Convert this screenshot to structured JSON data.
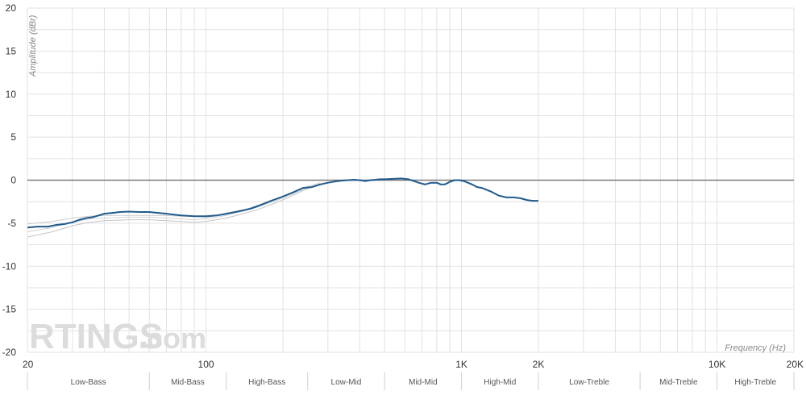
{
  "chart_data": {
    "type": "line",
    "xlabel": "Frequency (Hz)",
    "ylabel": "Amplitude (dBr)",
    "xscale": "log",
    "xlim": [
      20,
      20000
    ],
    "ylim": [
      -20,
      20
    ],
    "grid": true,
    "x_ticks": [
      {
        "value": 20,
        "label": "20"
      },
      {
        "value": 100,
        "label": "100"
      },
      {
        "value": 1000,
        "label": "1K"
      },
      {
        "value": 2000,
        "label": "2K"
      },
      {
        "value": 10000,
        "label": "10K"
      },
      {
        "value": 20000,
        "label": "20K"
      }
    ],
    "y_ticks": [
      {
        "value": 20,
        "label": "20"
      },
      {
        "value": 15,
        "label": "15"
      },
      {
        "value": 10,
        "label": "10"
      },
      {
        "value": 5,
        "label": "5"
      },
      {
        "value": 0,
        "label": "0"
      },
      {
        "value": -5,
        "label": "-5"
      },
      {
        "value": -10,
        "label": "-10"
      },
      {
        "value": -15,
        "label": "-15"
      },
      {
        "value": -20,
        "label": "-20"
      }
    ],
    "bands": [
      {
        "label": "Low-Bass",
        "from": 20,
        "to": 60
      },
      {
        "label": "Mid-Bass",
        "from": 60,
        "to": 120
      },
      {
        "label": "High-Bass",
        "from": 120,
        "to": 250
      },
      {
        "label": "Low-Mid",
        "from": 250,
        "to": 500
      },
      {
        "label": "Mid-Mid",
        "from": 500,
        "to": 1000
      },
      {
        "label": "High-Mid",
        "from": 1000,
        "to": 2000
      },
      {
        "label": "Low-Treble",
        "from": 2000,
        "to": 5000
      },
      {
        "label": "Mid-Treble",
        "from": 5000,
        "to": 10000
      },
      {
        "label": "High-Treble",
        "from": 10000,
        "to": 20000
      }
    ],
    "series": [
      {
        "color": "#1f5a8c",
        "x": [
          20,
          22,
          24,
          26,
          28,
          30,
          32,
          34,
          36,
          38,
          40,
          43,
          46,
          50,
          55,
          60,
          65,
          70,
          75,
          80,
          85,
          90,
          95,
          100,
          105,
          110,
          115,
          120,
          130,
          140,
          150,
          160,
          180,
          200,
          220,
          240,
          260,
          280,
          300,
          320,
          340,
          360,
          380,
          400,
          420,
          440,
          460,
          480,
          500,
          540,
          580,
          620,
          650,
          680,
          720,
          760,
          800,
          830,
          860,
          900,
          940,
          980,
          1020,
          1060,
          1100,
          1150,
          1200,
          1300,
          1400,
          1500,
          1600,
          1700,
          1800,
          1900,
          2000
        ],
        "y": [
          -5.5,
          -5.4,
          -5.4,
          -5.2,
          -5.1,
          -4.9,
          -4.6,
          -4.4,
          -4.3,
          -4.1,
          -3.9,
          -3.8,
          -3.7,
          -3.65,
          -3.7,
          -3.7,
          -3.8,
          -3.9,
          -4.0,
          -4.1,
          -4.15,
          -4.2,
          -4.2,
          -4.2,
          -4.15,
          -4.1,
          -4.0,
          -3.9,
          -3.7,
          -3.5,
          -3.3,
          -3.0,
          -2.4,
          -1.9,
          -1.4,
          -0.9,
          -0.8,
          -0.5,
          -0.3,
          -0.15,
          -0.05,
          0.0,
          0.05,
          0.0,
          -0.1,
          0.0,
          0.05,
          0.1,
          0.1,
          0.15,
          0.2,
          0.1,
          -0.1,
          -0.3,
          -0.5,
          -0.3,
          -0.3,
          -0.5,
          -0.5,
          -0.2,
          0.0,
          0.0,
          -0.1,
          -0.3,
          -0.5,
          -0.8,
          -0.9,
          -1.3,
          -1.8,
          -2.0,
          -2.0,
          -2.1,
          -2.3,
          -2.4,
          -2.4
        ]
      },
      {
        "color": "#c4c4c4",
        "x": [
          20,
          25,
          30,
          35,
          40,
          50,
          60,
          70,
          80,
          90,
          100,
          120,
          140,
          160,
          200,
          240,
          280
        ],
        "y": [
          -6.6,
          -6.0,
          -5.3,
          -4.9,
          -4.7,
          -4.6,
          -4.6,
          -4.7,
          -4.8,
          -4.9,
          -4.8,
          -4.4,
          -3.9,
          -3.4,
          -2.3,
          -1.2,
          -0.5
        ]
      },
      {
        "color": "#d2d2d2",
        "x": [
          20,
          25,
          30,
          35,
          40,
          50,
          60,
          70,
          80,
          90,
          100,
          120,
          140,
          160,
          200,
          240,
          280
        ],
        "y": [
          -6.0,
          -5.5,
          -4.9,
          -4.5,
          -4.4,
          -4.3,
          -4.3,
          -4.4,
          -4.5,
          -4.6,
          -4.5,
          -4.1,
          -3.6,
          -3.1,
          -2.1,
          -1.1,
          -0.4
        ]
      },
      {
        "color": "#cccccc",
        "x": [
          20,
          25,
          30,
          35,
          40,
          50,
          60,
          70,
          80,
          90,
          100,
          120,
          140,
          160,
          200,
          240,
          280
        ],
        "y": [
          -5.1,
          -4.8,
          -4.4,
          -4.2,
          -4.1,
          -4.1,
          -4.1,
          -4.1,
          -4.2,
          -4.2,
          -4.3,
          -4.0,
          -3.5,
          -2.9,
          -1.9,
          -0.9,
          -0.3
        ]
      }
    ]
  },
  "watermark": {
    "brand": "RTINGS",
    "suffix": ".com"
  }
}
